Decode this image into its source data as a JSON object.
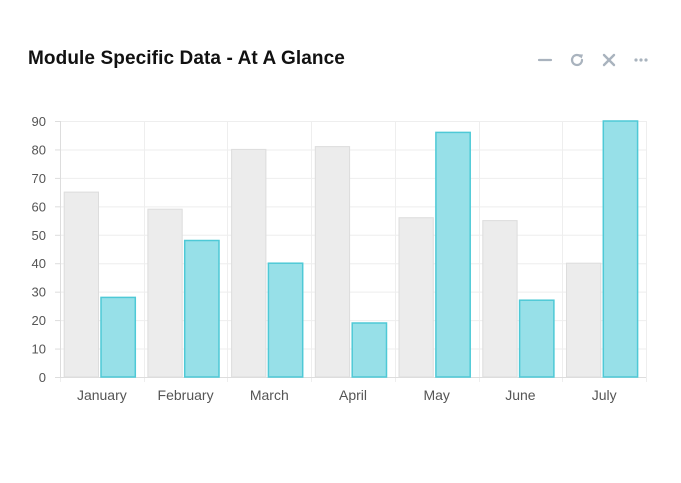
{
  "widget": {
    "title": "Module Specific Data - At A Glance",
    "tools": [
      {
        "name": "minimize-icon"
      },
      {
        "name": "refresh-icon"
      },
      {
        "name": "close-icon"
      },
      {
        "name": "more-icon"
      }
    ]
  },
  "colors": {
    "series_a_fill": "#ececec",
    "series_a_stroke": "#dddddd",
    "series_b_fill": "#97e0e8",
    "series_b_stroke": "#4ec9d6",
    "grid": "#eeeeee",
    "axis": "#dddddd",
    "tick_text": "#555555",
    "icon": "#a9b3be"
  },
  "chart_data": {
    "type": "bar",
    "title": "",
    "xlabel": "",
    "ylabel": "",
    "categories": [
      "January",
      "February",
      "March",
      "April",
      "May",
      "June",
      "July"
    ],
    "yticks": [
      "0",
      "10",
      "20",
      "30",
      "40",
      "50",
      "60",
      "70",
      "80",
      "90"
    ],
    "ylim": [
      0,
      90
    ],
    "grid": true,
    "legend": "none",
    "series": [
      {
        "values": [
          65,
          59,
          80,
          81,
          56,
          55,
          40
        ]
      },
      {
        "values": [
          28,
          48,
          40,
          19,
          86,
          27,
          90
        ]
      }
    ]
  }
}
